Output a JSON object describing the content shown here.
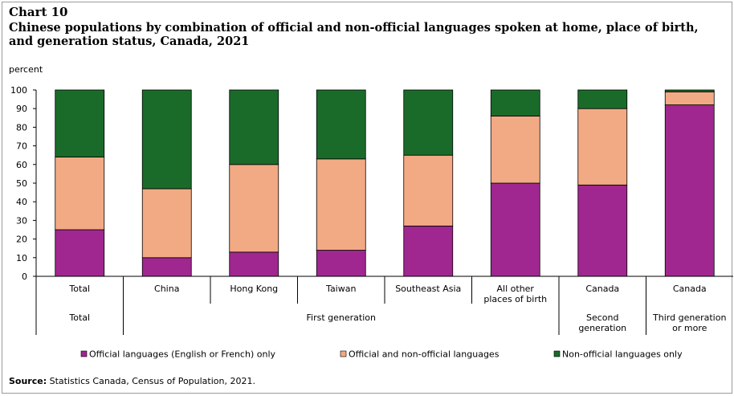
{
  "header": {
    "chart_number": "Chart 10",
    "title": "Chinese populations by combination of official and non-official languages spoken at home, place of birth, and generation status, Canada, 2021"
  },
  "footer": {
    "source_label": "Source:",
    "source_text": "Statistics Canada, Census of Population, 2021."
  },
  "colors": {
    "official": "#a0278f",
    "both": "#f2aa84",
    "nonofficial": "#1a6b2a"
  },
  "chart_data": {
    "type": "bar",
    "stacked": true,
    "ylabel": "percent",
    "ylim": [
      0,
      100
    ],
    "yticks": [
      0,
      10,
      20,
      30,
      40,
      50,
      60,
      70,
      80,
      90,
      100
    ],
    "grid": false,
    "legend_position": "bottom",
    "categories": [
      [
        "Total"
      ],
      [
        "China"
      ],
      [
        "Hong Kong"
      ],
      [
        "Taiwan"
      ],
      [
        "Southeast Asia"
      ],
      [
        "All other",
        "places of birth"
      ],
      [
        "Canada"
      ],
      [
        "Canada"
      ]
    ],
    "groups": [
      {
        "label": [
          "Total"
        ],
        "span": [
          0,
          0
        ]
      },
      {
        "label": [
          "First generation"
        ],
        "span": [
          1,
          5
        ]
      },
      {
        "label": [
          "Second",
          "generation"
        ],
        "span": [
          6,
          6
        ]
      },
      {
        "label": [
          "Third generation",
          "or more"
        ],
        "span": [
          7,
          7
        ]
      }
    ],
    "series": [
      {
        "name": "Official languages (English or French) only",
        "color_key": "official",
        "values": [
          25,
          10,
          13,
          14,
          27,
          50,
          49,
          92
        ]
      },
      {
        "name": "Official and non-official languages",
        "color_key": "both",
        "values": [
          39,
          37,
          47,
          49,
          38,
          36,
          41,
          7
        ]
      },
      {
        "name": "Non-official languages only",
        "color_key": "nonofficial",
        "values": [
          36,
          53,
          40,
          37,
          35,
          14,
          10,
          1
        ]
      }
    ]
  }
}
